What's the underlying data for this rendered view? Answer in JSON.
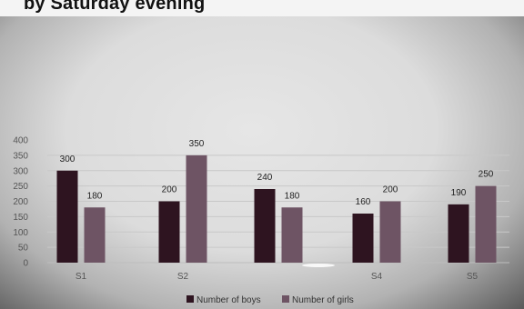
{
  "header_fragment": "by Saturday evening",
  "chart_data": {
    "type": "bar",
    "categories": [
      "S1",
      "S2",
      "",
      "S4",
      "S5"
    ],
    "series": [
      {
        "name": "Number of boys",
        "values": [
          300,
          200,
          240,
          160,
          190
        ],
        "color": "#2e1420"
      },
      {
        "name": "Number of girls",
        "values": [
          180,
          350,
          180,
          200,
          250
        ],
        "color": "#6e5464"
      }
    ],
    "ylim": [
      0,
      400
    ],
    "yticks": [
      0,
      50,
      100,
      150,
      200,
      250,
      300,
      350,
      400
    ],
    "grid": true,
    "legend": "bottom-center"
  }
}
